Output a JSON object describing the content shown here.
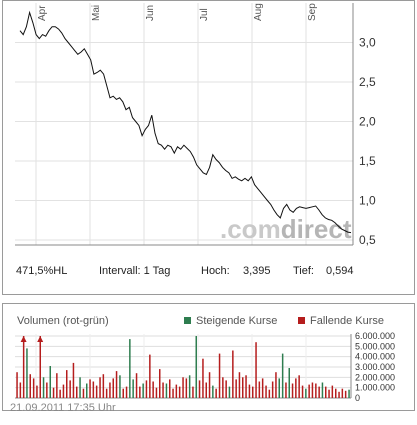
{
  "price_panel": {
    "info": {
      "change": "471,5%HL",
      "interval": "Intervall: 1 Tag",
      "high_label": "Hoch:",
      "high_value": "3,395",
      "low_label": "Tief:",
      "low_value": "0,594"
    },
    "watermark": {
      "prefix": ".com",
      "suffix": "direct",
      "prefix_color": "#c9c9c9",
      "suffix_color": "#b5b5b5"
    }
  },
  "volume_panel": {
    "title": "Volumen (rot-grün)",
    "legend": [
      {
        "label": "Steigende Kurse",
        "color": "#2e7d4f"
      },
      {
        "label": "Fallende Kurse",
        "color": "#b51d1d"
      }
    ]
  },
  "timestamp": "21.09.2011 17:35 Uhr",
  "chart_data": [
    {
      "type": "line",
      "x_tick_labels": [
        "Apr",
        "Mai",
        "Jun",
        "Jul",
        "Aug",
        "Sep"
      ],
      "y_ticks": [
        0.5,
        1.0,
        1.5,
        2.0,
        2.5,
        3.0
      ],
      "y_tick_labels": [
        "0,5",
        "1,0",
        "1,5",
        "2,0",
        "2,5",
        "3,0"
      ],
      "ylim": [
        0.5,
        3.4
      ],
      "grid": true,
      "line_color": "#111111",
      "series": [
        {
          "values": [
            3.15,
            3.1,
            3.2,
            3.38,
            3.25,
            3.1,
            3.05,
            3.1,
            3.08,
            3.15,
            3.2,
            3.2,
            3.17,
            3.12,
            3.05,
            3.0,
            2.95,
            2.9,
            2.85,
            2.88,
            2.92,
            2.85,
            2.78,
            2.6,
            2.62,
            2.65,
            2.6,
            2.45,
            2.3,
            2.32,
            2.28,
            2.3,
            2.25,
            2.15,
            2.18,
            2.05,
            2.0,
            1.95,
            1.82,
            1.9,
            1.95,
            2.08,
            1.85,
            1.72,
            1.7,
            1.65,
            1.7,
            1.68,
            1.6,
            1.68,
            1.65,
            1.7,
            1.66,
            1.62,
            1.55,
            1.45,
            1.4,
            1.35,
            1.33,
            1.42,
            1.58,
            1.52,
            1.48,
            1.42,
            1.38,
            1.35,
            1.28,
            1.3,
            1.27,
            1.25,
            1.28,
            1.25,
            1.3,
            1.2,
            1.15,
            1.1,
            1.05,
            1.0,
            0.95,
            0.88,
            0.82,
            0.78,
            0.9,
            0.95,
            0.88,
            0.85,
            0.9,
            0.92,
            0.91,
            0.9,
            0.91,
            0.92,
            0.93,
            0.88,
            0.82,
            0.78,
            0.76,
            0.75,
            0.72,
            0.68,
            0.64,
            0.62,
            0.6,
            0.594
          ]
        }
      ]
    },
    {
      "type": "bar",
      "y_ticks": [
        0,
        1000000,
        2000000,
        3000000,
        4000000,
        5000000,
        6000000
      ],
      "y_tick_labels": [
        "0",
        "1.000.000",
        "2.000.000",
        "3.000.000",
        "4.000.000",
        "5.000.000",
        "6.000.000"
      ],
      "ylim": [
        0,
        6600000
      ],
      "grid": true,
      "series": [
        {
          "name": "Steigende Kurse",
          "color": "#2e7d4f"
        },
        {
          "name": "Fallende Kurse",
          "color": "#b51d1d"
        }
      ],
      "values": [
        2500000,
        1500000,
        6200000,
        4800000,
        2300000,
        1900000,
        1200000,
        6600000,
        2000000,
        1500000,
        3100000,
        1000000,
        2400000,
        800000,
        1300000,
        2700000,
        1700000,
        3400000,
        1100000,
        2000000,
        900000,
        1400000,
        1800000,
        1600000,
        1200000,
        2000000,
        2300000,
        900000,
        1500000,
        1900000,
        2600000,
        2200000,
        900000,
        1100000,
        5700000,
        1800000,
        2400000,
        1100000,
        1400000,
        1700000,
        4200000,
        1600000,
        1000000,
        2800000,
        1500000,
        1400000,
        1800000,
        900000,
        1300000,
        1100000,
        2000000,
        1900000,
        2200000,
        1100000,
        6000000,
        1700000,
        3800000,
        1500000,
        2500000,
        1200000,
        900000,
        4300000,
        2000000,
        1700000,
        1100000,
        4600000,
        1800000,
        2500000,
        2000000,
        2200000,
        1300000,
        1100000,
        5400000,
        1600000,
        1900000,
        1200000,
        800000,
        1600000,
        2500000,
        1900000,
        4300000,
        1500000,
        2900000,
        1400000,
        1900000,
        2200000,
        1200000,
        900000,
        1300000,
        1500000,
        1400000,
        1100000,
        1500000,
        1100000,
        800000,
        1200000,
        900000,
        600000,
        900000,
        700000,
        800000
      ],
      "rising": [
        false,
        false,
        false,
        true,
        false,
        false,
        false,
        false,
        true,
        false,
        true,
        false,
        false,
        false,
        false,
        false,
        false,
        false,
        false,
        true,
        false,
        true,
        false,
        false,
        false,
        false,
        false,
        false,
        false,
        false,
        false,
        true,
        false,
        false,
        true,
        true,
        false,
        false,
        true,
        false,
        false,
        false,
        false,
        false,
        false,
        true,
        false,
        false,
        false,
        false,
        false,
        false,
        true,
        false,
        true,
        false,
        false,
        false,
        false,
        true,
        false,
        false,
        false,
        false,
        true,
        false,
        false,
        false,
        false,
        false,
        false,
        false,
        false,
        false,
        false,
        false,
        false,
        false,
        false,
        true,
        true,
        false,
        true,
        false,
        false,
        false,
        false,
        true,
        false,
        false,
        false,
        false,
        true,
        false,
        false,
        false,
        false,
        false,
        false,
        false,
        true
      ]
    }
  ]
}
